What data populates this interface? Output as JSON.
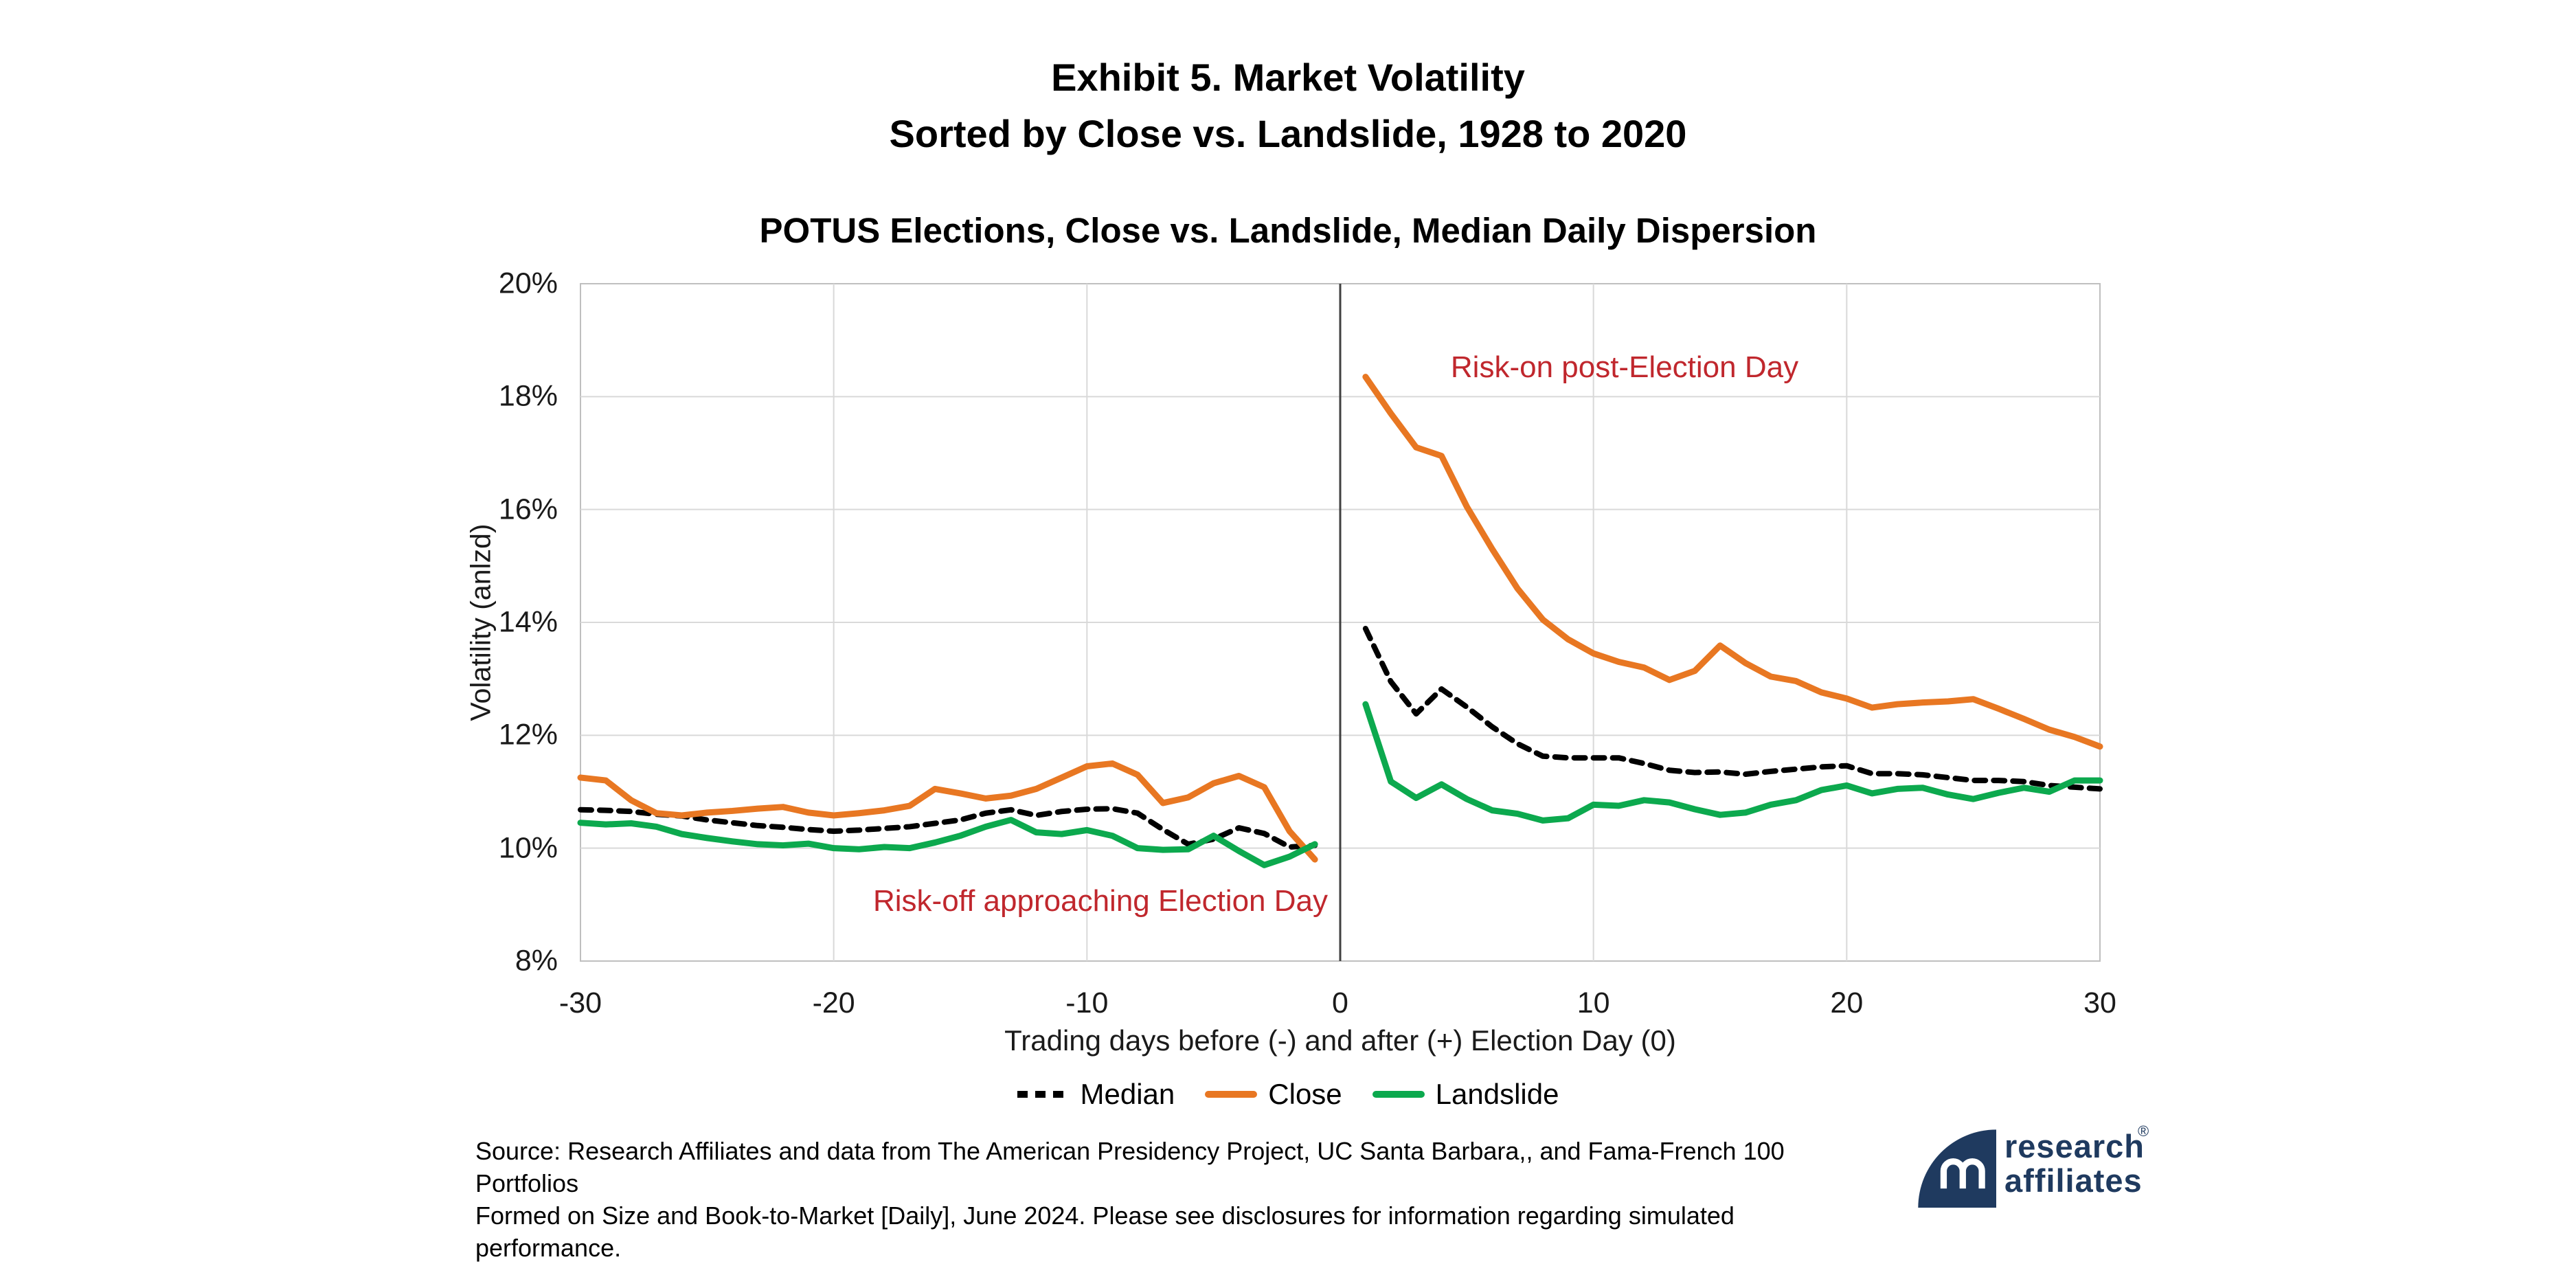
{
  "header": {
    "title_line1": "Exhibit 5. Market Volatility",
    "title_line2": "Sorted by Close vs. Landslide, 1928 to 2020",
    "subtitle": "POTUS Elections, Close vs. Landslide, Median Daily Dispersion"
  },
  "chart_data": {
    "type": "line",
    "title": "POTUS Elections, Close vs. Landslide, Median Daily Dispersion",
    "xlabel": "Trading days before (-) and after (+) Election Day (0)",
    "ylabel": "Volatility (anlzd)",
    "xlim": [
      -30,
      30
    ],
    "ylim": [
      8,
      20
    ],
    "grid": true,
    "y_ticks": [
      {
        "value": 20,
        "label": "20%"
      },
      {
        "value": 18,
        "label": "18%"
      },
      {
        "value": 16,
        "label": "16%"
      },
      {
        "value": 14,
        "label": "14%"
      },
      {
        "value": 12,
        "label": "12%"
      },
      {
        "value": 10,
        "label": "10%"
      },
      {
        "value": 8,
        "label": "8%"
      }
    ],
    "x_ticks": [
      {
        "value": -30,
        "label": "-30"
      },
      {
        "value": -20,
        "label": "-20"
      },
      {
        "value": -10,
        "label": "-10"
      },
      {
        "value": 0,
        "label": "0"
      },
      {
        "value": 10,
        "label": "10"
      },
      {
        "value": 20,
        "label": "20"
      },
      {
        "value": 30,
        "label": "30"
      }
    ],
    "y_gridlines": [
      18,
      16,
      14,
      12,
      10
    ],
    "x_gridlines": [
      -20,
      -10,
      10,
      20
    ],
    "divider_x": 0,
    "x_pre": [
      -30,
      -29,
      -28,
      -27,
      -26,
      -25,
      -24,
      -23,
      -22,
      -21,
      -20,
      -19,
      -18,
      -17,
      -16,
      -15,
      -14,
      -13,
      -12,
      -11,
      -10,
      -9,
      -8,
      -7,
      -6,
      -5,
      -4,
      -3,
      -2,
      -1
    ],
    "x_post": [
      1,
      2,
      3,
      4,
      5,
      6,
      7,
      8,
      9,
      10,
      11,
      12,
      13,
      14,
      15,
      16,
      17,
      18,
      19,
      20,
      21,
      22,
      23,
      24,
      25,
      26,
      27,
      28,
      29,
      30
    ],
    "series": [
      {
        "name": "Median",
        "color": "#000000",
        "style": "dashed",
        "values_pre": [
          10.68,
          10.67,
          10.65,
          10.6,
          10.57,
          10.5,
          10.45,
          10.4,
          10.37,
          10.33,
          10.3,
          10.32,
          10.35,
          10.38,
          10.44,
          10.5,
          10.62,
          10.68,
          10.58,
          10.65,
          10.69,
          10.7,
          10.62,
          10.33,
          10.07,
          10.16,
          10.36,
          10.26,
          10.02,
          10.05
        ],
        "values_post": [
          13.89,
          12.95,
          12.38,
          12.82,
          12.5,
          12.15,
          11.85,
          11.63,
          11.6,
          11.6,
          11.6,
          11.5,
          11.38,
          11.34,
          11.35,
          11.31,
          11.36,
          11.4,
          11.44,
          11.46,
          11.32,
          11.32,
          11.3,
          11.25,
          11.2,
          11.2,
          11.18,
          11.11,
          11.08,
          11.05
        ]
      },
      {
        "name": "Close",
        "color": "#e87722",
        "style": "solid",
        "values_pre": [
          11.25,
          11.2,
          10.85,
          10.62,
          10.58,
          10.63,
          10.66,
          10.7,
          10.73,
          10.63,
          10.58,
          10.62,
          10.67,
          10.75,
          11.05,
          10.97,
          10.88,
          10.93,
          11.05,
          11.25,
          11.45,
          11.5,
          11.3,
          10.8,
          10.9,
          11.15,
          11.28,
          11.08,
          10.3,
          9.8
        ],
        "values_post": [
          18.35,
          17.7,
          17.1,
          16.95,
          16.05,
          15.3,
          14.6,
          14.05,
          13.7,
          13.45,
          13.3,
          13.2,
          12.98,
          13.14,
          13.59,
          13.28,
          13.04,
          12.96,
          12.76,
          12.65,
          12.49,
          12.55,
          12.58,
          12.6,
          12.64,
          12.47,
          12.29,
          12.1,
          11.97,
          11.8
        ]
      },
      {
        "name": "Landslide",
        "color": "#0ca94e",
        "style": "solid",
        "values_pre": [
          10.45,
          10.42,
          10.44,
          10.38,
          10.25,
          10.18,
          10.12,
          10.07,
          10.05,
          10.08,
          10.0,
          9.98,
          10.02,
          10.0,
          10.1,
          10.22,
          10.38,
          10.5,
          10.28,
          10.25,
          10.32,
          10.22,
          10.0,
          9.97,
          9.98,
          10.22,
          9.95,
          9.7,
          9.85,
          10.07
        ],
        "values_post": [
          12.55,
          11.18,
          10.89,
          11.13,
          10.87,
          10.67,
          10.61,
          10.49,
          10.53,
          10.77,
          10.75,
          10.85,
          10.81,
          10.69,
          10.59,
          10.63,
          10.77,
          10.85,
          11.03,
          11.11,
          10.97,
          11.05,
          11.07,
          10.95,
          10.87,
          10.98,
          11.07,
          11.0,
          11.2,
          11.2
        ]
      }
    ],
    "annotations": [
      {
        "text": "Risk-on post-Election Day",
        "x": 11.2,
        "y": 18.5,
        "color": "#c0272d"
      },
      {
        "text": "Risk-off approaching Election Day",
        "x": -9.5,
        "y": 9.05,
        "color": "#c0272d"
      }
    ],
    "legend_position": "bottom"
  },
  "colors": {
    "close_orange": "#e87722",
    "landslide_green": "#0ca94e",
    "median_black": "#000000",
    "annotation_red": "#c0272d",
    "gridline": "#d9d9d9",
    "plot_border": "#bfbfbf",
    "divider": "#404040",
    "logo_navy": "#1f3a5f"
  },
  "footer": {
    "source_line1": "Source: Research Affiliates and data from The American Presidency Project, UC Santa Barbara,, and Fama-French 100 Portfolios",
    "source_line2": "Formed on Size and Book-to-Market [Daily], June 2024. Please see disclosures for information regarding simulated performance.",
    "logo_line1": "research",
    "logo_line2": "affiliates",
    "logo_reg": "®"
  }
}
